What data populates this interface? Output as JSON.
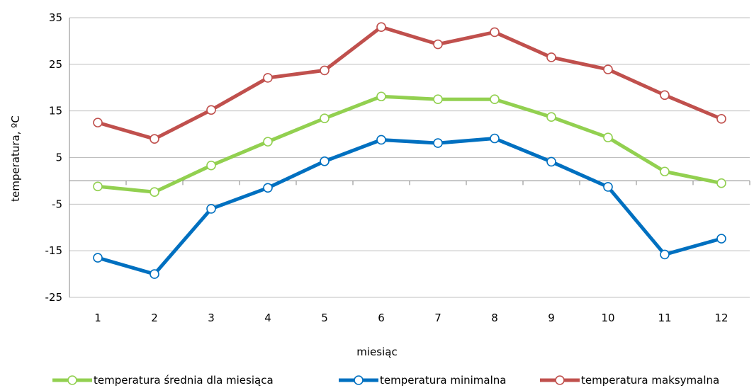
{
  "chart_data": {
    "type": "line",
    "xlabel": "miesiąc",
    "ylabel": "temperatura, ºC",
    "ylim": [
      -25,
      35
    ],
    "yticks": [
      35,
      25,
      15,
      5,
      -5,
      -15,
      -25
    ],
    "categories": [
      "1",
      "2",
      "3",
      "4",
      "5",
      "6",
      "7",
      "8",
      "9",
      "10",
      "11",
      "12"
    ],
    "grid": "horizontal",
    "legend_position": "bottom",
    "series": [
      {
        "name": "temperatura średnia dla miesiąca",
        "color": "#92d050",
        "values": [
          -1.2,
          -2.4,
          3.3,
          8.4,
          13.4,
          18.1,
          17.5,
          17.5,
          13.7,
          9.3,
          2.0,
          -0.5
        ]
      },
      {
        "name": "temperatura minimalna",
        "color": "#0070c0",
        "values": [
          -16.5,
          -20.0,
          -6.0,
          -1.5,
          4.2,
          8.8,
          8.1,
          9.1,
          4.1,
          -1.3,
          -15.8,
          -12.4
        ]
      },
      {
        "name": "temperatura maksymalna",
        "color": "#c0504d",
        "values": [
          12.5,
          9.0,
          15.2,
          22.1,
          23.7,
          33.0,
          29.3,
          31.9,
          26.5,
          23.9,
          18.4,
          13.3
        ]
      }
    ]
  }
}
